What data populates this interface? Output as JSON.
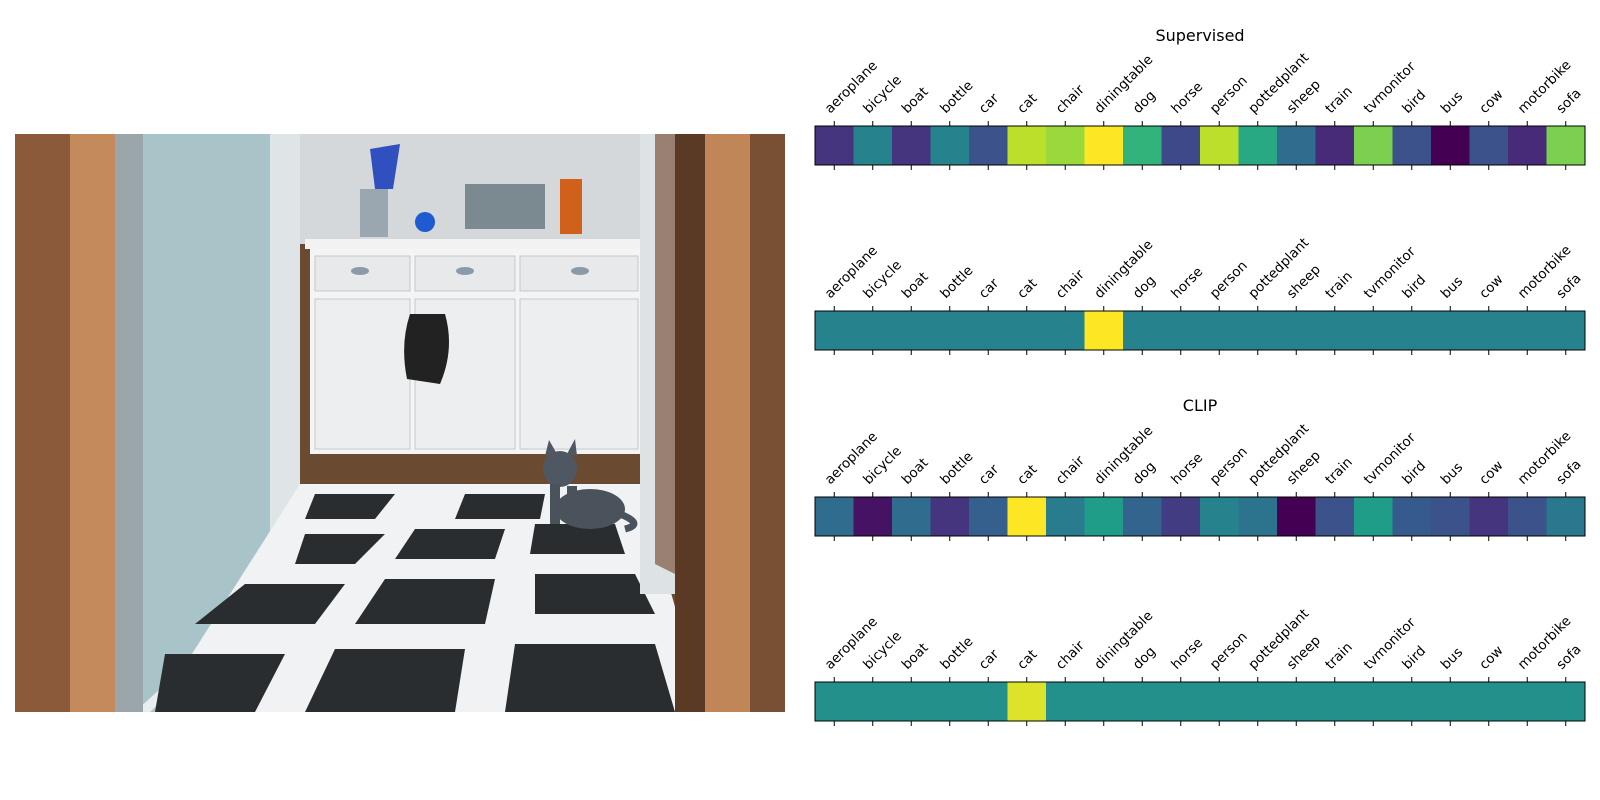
{
  "photo": {
    "description_icon": "kitchen-cat-photo"
  },
  "chart_data": {
    "type": "heatmap",
    "categories": [
      "aeroplane",
      "bicycle",
      "boat",
      "bottle",
      "car",
      "cat",
      "chair",
      "diningtable",
      "dog",
      "horse",
      "person",
      "pottedplant",
      "sheep",
      "train",
      "tvmonitor",
      "bird",
      "bus",
      "cow",
      "motorbike",
      "sofa"
    ],
    "colormap": "viridis",
    "rows": [
      {
        "title": "Supervised",
        "values": [
          0.15,
          0.45,
          0.15,
          0.45,
          0.25,
          0.9,
          0.85,
          1.0,
          0.65,
          0.22,
          0.9,
          0.6,
          0.35,
          0.12,
          0.8,
          0.25,
          0.0,
          0.25,
          0.12,
          0.8
        ]
      },
      {
        "title": "",
        "values": [
          0.45,
          0.45,
          0.45,
          0.45,
          0.45,
          0.45,
          0.45,
          1.0,
          0.45,
          0.45,
          0.45,
          0.45,
          0.45,
          0.45,
          0.45,
          0.45,
          0.45,
          0.45,
          0.45,
          0.45
        ]
      },
      {
        "title": "CLIP",
        "values": [
          0.35,
          0.05,
          0.35,
          0.15,
          0.3,
          1.0,
          0.42,
          0.55,
          0.32,
          0.18,
          0.45,
          0.38,
          0.0,
          0.25,
          0.55,
          0.28,
          0.25,
          0.15,
          0.25,
          0.4
        ]
      },
      {
        "title": "",
        "values": [
          0.5,
          0.5,
          0.5,
          0.5,
          0.5,
          0.95,
          0.5,
          0.5,
          0.5,
          0.5,
          0.5,
          0.5,
          0.5,
          0.5,
          0.5,
          0.5,
          0.5,
          0.5,
          0.5,
          0.5
        ]
      }
    ]
  }
}
